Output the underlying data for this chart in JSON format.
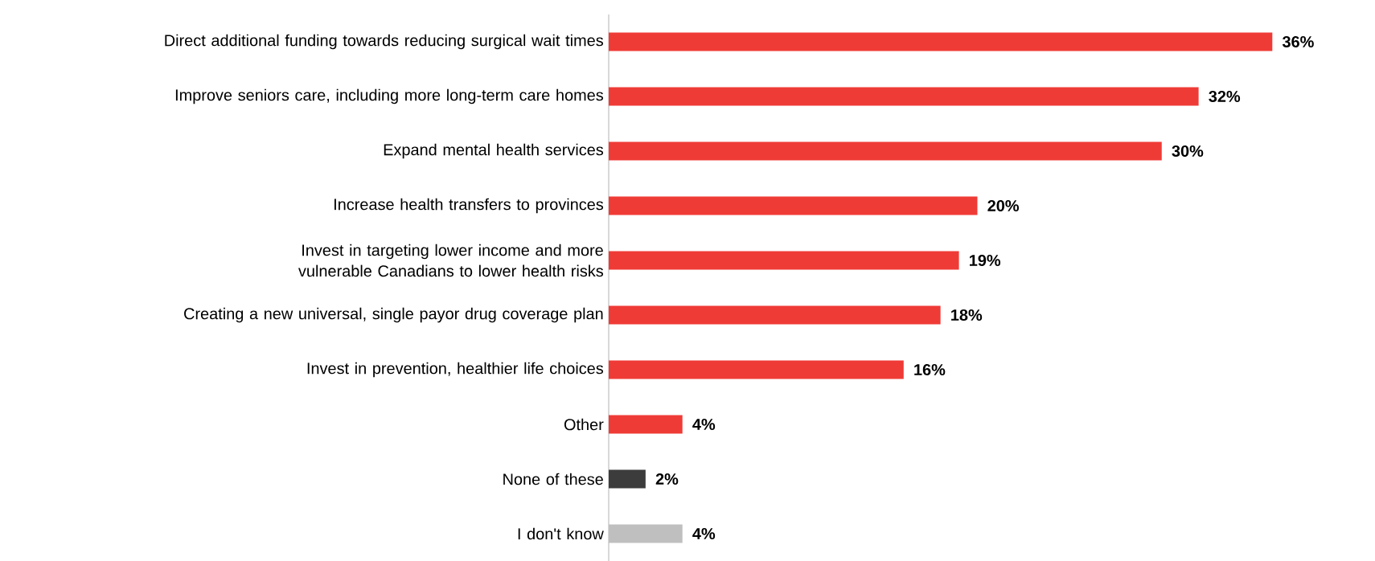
{
  "chart_data": {
    "type": "bar",
    "orientation": "horizontal",
    "data_labels": true,
    "categories": [
      "Direct additional funding towards reducing surgical wait times",
      "Improve seniors care, including more long-term care homes",
      "Expand mental health services",
      "Increase health transfers to provinces",
      "Invest in targeting lower income and more vulnerable Canadians to lower health risks",
      "Creating a new universal, single payor drug coverage plan",
      "Invest in prevention, healthier life choices",
      "Other",
      "None of these",
      "I don't know"
    ],
    "values": [
      36,
      32,
      30,
      20,
      19,
      18,
      16,
      4,
      2,
      4
    ],
    "value_labels": [
      "36%",
      "32%",
      "30%",
      "20%",
      "19%",
      "18%",
      "16%",
      "4%",
      "2%",
      "4%"
    ],
    "colors": [
      "#ef3b36",
      "#ef3b36",
      "#ef3b36",
      "#ef3b36",
      "#ef3b36",
      "#ef3b36",
      "#ef3b36",
      "#ef3b36",
      "#3c3c3c",
      "#bfbfbf"
    ]
  }
}
